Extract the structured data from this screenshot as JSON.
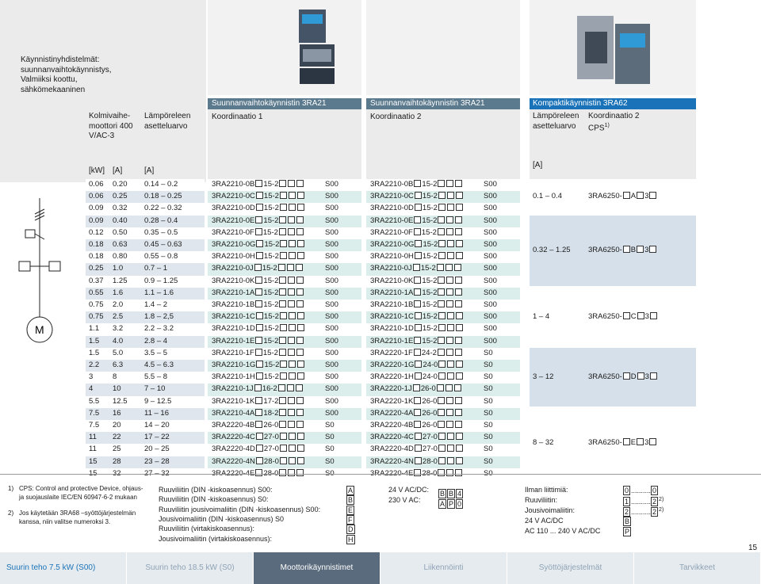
{
  "intro": {
    "title": "Käynnistinyhdistelmät: suunnanvaihtokäynnistys, Valmiiksi koottu, sähkömekaaninen"
  },
  "headers": {
    "motor": "Kolmivaihe-moottori 400 V/AC-3",
    "thermal": "Lämpöreleen asetteluarvo",
    "group1_title": "Suunnanvaihtokäynnistin 3RA21",
    "group1_coord": "Koordinaatio 1",
    "group2_title": "Suunnanvaihtokäynnistin 3RA21",
    "group2_coord": "Koordinaatio 2",
    "group3_title": "Kompaktikäynnistin  3RA62",
    "group3_thermal": "Lämpöreleen asetteluarvo",
    "group3_coord": "Koordinaatio 2",
    "group3_cps": "CPS",
    "group3_cps_sup": "1)",
    "unit_kw": "[kW]",
    "unit_a": "[A]",
    "unit_a2": "[A]",
    "unit_a3": "[A]"
  },
  "rows": [
    {
      "kw": "0.06",
      "a": "0.20",
      "range": "0.14 – 0.2",
      "c1a": "3RA2210-0B",
      "c1b": "15-2",
      "s1": "S00",
      "c2a": "3RA2210-0B",
      "c2b": "15-2",
      "s2": "S00"
    },
    {
      "kw": "0.06",
      "a": "0.25",
      "range": "0.18 – 0.25",
      "c1a": "3RA2210-0C",
      "c1b": "15-2",
      "s1": "S00",
      "c2a": "3RA2210-0C",
      "c2b": "15-2",
      "s2": "S00"
    },
    {
      "kw": "0.09",
      "a": "0.32",
      "range": "0.22 – 0.32",
      "c1a": "3RA2210-0D",
      "c1b": "15-2",
      "s1": "S00",
      "c2a": "3RA2210-0D",
      "c2b": "15-2",
      "s2": "S00"
    },
    {
      "kw": "0.09",
      "a": "0.40",
      "range": "0.28 – 0.4",
      "c1a": "3RA2210-0E",
      "c1b": "15-2",
      "s1": "S00",
      "c2a": "3RA2210-0E",
      "c2b": "15-2",
      "s2": "S00"
    },
    {
      "kw": "0.12",
      "a": "0.50",
      "range": "0.35 – 0.5",
      "c1a": "3RA2210-0F",
      "c1b": "15-2",
      "s1": "S00",
      "c2a": "3RA2210-0F",
      "c2b": "15-2",
      "s2": "S00"
    },
    {
      "kw": "0.18",
      "a": "0.63",
      "range": "0.45 – 0.63",
      "c1a": "3RA2210-0G",
      "c1b": "15-2",
      "s1": "S00",
      "c2a": "3RA2210-0G",
      "c2b": "15-2",
      "s2": "S00"
    },
    {
      "kw": "0.18",
      "a": "0.80",
      "range": "0.55 – 0.8",
      "c1a": "3RA2210-0H",
      "c1b": "15-2",
      "s1": "S00",
      "c2a": "3RA2210-0H",
      "c2b": "15-2",
      "s2": "S00"
    },
    {
      "kw": "0.25",
      "a": "1.0",
      "range": "0.7 – 1",
      "c1a": "3RA2210-0J",
      "c1b": "15-2",
      "s1": "S00",
      "c2a": "3RA2210-0J",
      "c2b": "15-2",
      "s2": "S00"
    },
    {
      "kw": "0.37",
      "a": "1.25",
      "range": "0.9 – 1.25",
      "c1a": "3RA2210-0K",
      "c1b": "15-2",
      "s1": "S00",
      "c2a": "3RA2210-0K",
      "c2b": "15-2",
      "s2": "S00"
    },
    {
      "kw": "0.55",
      "a": "1.6",
      "range": "1.1 – 1.6",
      "c1a": "3RA2210-1A",
      "c1b": "15-2",
      "s1": "S00",
      "c2a": "3RA2210-1A",
      "c2b": "15-2",
      "s2": "S00"
    },
    {
      "kw": "0.75",
      "a": "2.0",
      "range": "1.4 – 2",
      "c1a": "3RA2210-1B",
      "c1b": "15-2",
      "s1": "S00",
      "c2a": "3RA2210-1B",
      "c2b": "15-2",
      "s2": "S00"
    },
    {
      "kw": "0.75",
      "a": "2.5",
      "range": "1.8 – 2,5",
      "c1a": "3RA2210-1C",
      "c1b": "15-2",
      "s1": "S00",
      "c2a": "3RA2210-1C",
      "c2b": "15-2",
      "s2": "S00"
    },
    {
      "kw": "1.1",
      "a": "3.2",
      "range": "2.2 – 3.2",
      "c1a": "3RA2210-1D",
      "c1b": "15-2",
      "s1": "S00",
      "c2a": "3RA2210-1D",
      "c2b": "15-2",
      "s2": "S00"
    },
    {
      "kw": "1.5",
      "a": "4.0",
      "range": "2.8 – 4",
      "c1a": "3RA2210-1E",
      "c1b": "15-2",
      "s1": "S00",
      "c2a": "3RA2210-1E",
      "c2b": "15-2",
      "s2": "S00"
    },
    {
      "kw": "1.5",
      "a": "5.0",
      "range": "3.5 – 5",
      "c1a": "3RA2210-1F",
      "c1b": "15-2",
      "s1": "S00",
      "c2a": "3RA2220-1F",
      "c2b": "24-2",
      "s2": "S0"
    },
    {
      "kw": "2.2",
      "a": "6.3",
      "range": "4.5 – 6.3",
      "c1a": "3RA2210-1G",
      "c1b": "15-2",
      "s1": "S00",
      "c2a": "3RA2220-1G",
      "c2b": "24-0",
      "s2": "S0"
    },
    {
      "kw": "3",
      "a": "8",
      "range": "5.5 – 8",
      "c1a": "3RA2210-1H",
      "c1b": "15-2",
      "s1": "S00",
      "c2a": "3RA2220-1H",
      "c2b": "24-0",
      "s2": "S0"
    },
    {
      "kw": "4",
      "a": "10",
      "range": "7 – 10",
      "c1a": "3RA2210-1J",
      "c1b": "16-2",
      "s1": "S00",
      "c2a": "3RA2220-1J",
      "c2b": "26-0",
      "s2": "S0"
    },
    {
      "kw": "5.5",
      "a": "12.5",
      "range": "9 – 12.5",
      "c1a": "3RA2210-1K",
      "c1b": "17-2",
      "s1": "S00",
      "c2a": "3RA2220-1K",
      "c2b": "26-0",
      "s2": "S0"
    },
    {
      "kw": "7.5",
      "a": "16",
      "range": "11 – 16",
      "c1a": "3RA2210-4A",
      "c1b": "18-2",
      "s1": "S00",
      "c2a": "3RA2220-4A",
      "c2b": "26-0",
      "s2": "S0"
    },
    {
      "kw": "7.5",
      "a": "20",
      "range": "14 – 20",
      "c1a": "3RA2220-4B",
      "c1b": "26-0",
      "s1": "S0",
      "c2a": "3RA2220-4B",
      "c2b": "26-0",
      "s2": "S0"
    },
    {
      "kw": "11",
      "a": "22",
      "range": "17 – 22",
      "c1a": "3RA2220-4C",
      "c1b": "27-0",
      "s1": "S0",
      "c2a": "3RA2220-4C",
      "c2b": "27-0",
      "s2": "S0"
    },
    {
      "kw": "11",
      "a": "25",
      "range": "20 – 25",
      "c1a": "3RA2220-4D",
      "c1b": "27-0",
      "s1": "S0",
      "c2a": "3RA2220-4D",
      "c2b": "27-0",
      "s2": "S0"
    },
    {
      "kw": "15",
      "a": "28",
      "range": "23 – 28",
      "c1a": "3RA2220-4N",
      "c1b": "28-0",
      "s1": "S0",
      "c2a": "3RA2220-4N",
      "c2b": "28-0",
      "s2": "S0"
    },
    {
      "kw": "15",
      "a": "32",
      "range": "27 – 32",
      "c1a": "3RA2220-4E",
      "c1b": "28-0",
      "s1": "S0",
      "c2a": "3RA2220-4E",
      "c2b": "28-0",
      "s2": "S0"
    }
  ],
  "compact": [
    {
      "range": "0.1 – 0.4",
      "prefix": "3RA6250-",
      "mid": "A",
      "suffix": "3"
    },
    {
      "range": "0.32 – 1.25",
      "prefix": "3RA6250-",
      "mid": "B",
      "suffix": "3"
    },
    {
      "range": "1 – 4",
      "prefix": "3RA6250-",
      "mid": "C",
      "suffix": "3"
    },
    {
      "range": "3 – 12",
      "prefix": "3RA6250-",
      "mid": "D",
      "suffix": "3"
    },
    {
      "range": "8 – 32",
      "prefix": "3RA6250-",
      "mid": "E",
      "suffix": "3"
    }
  ],
  "footnotes": [
    {
      "num": "1)",
      "text": "CPS: Control and protective Device, ohjaus- ja suojauslaite IEC/EN 60947-6-2 mukaan"
    },
    {
      "num": "2)",
      "text": "Jos käytetään 3RA68 –syöttöjärjestelmän kanssa, niin valitse numeroksi 3."
    }
  ],
  "legend": [
    {
      "text": "Ruuviliitin (DIN -kiskoasennus) S00:",
      "code": "A"
    },
    {
      "text": "Ruuviliitin (DIN -kiskoasennus) S0:",
      "code": "B"
    },
    {
      "text": "Ruuviliitin jousivoimaliitin (DIN -kiskoasennus) S00:",
      "code": "E"
    },
    {
      "text": "Jousivoimaliitin (DIN -kiskoasennus) S0",
      "code": "F"
    },
    {
      "text": "Ruuviliitin (virtakiskoasennus):",
      "code": "D"
    },
    {
      "text": "Jousivoimaliitin (virtakiskoasennus):",
      "code": "H"
    }
  ],
  "voltage": [
    {
      "label": "24 V AC/DC:",
      "c1": "B",
      "c2": "B",
      "c3": "4"
    },
    {
      "label": "230 V AC:",
      "c1": "A",
      "c2": "P",
      "c3": "0"
    }
  ],
  "options": [
    {
      "label": "Ilman liittimiä:",
      "c1": "0",
      "dots": "..........",
      "c2": "0",
      "sup": ""
    },
    {
      "label": "Ruuviliitin:",
      "c1": "1",
      "dots": "..........",
      "c2": "2",
      "sup": "2)"
    },
    {
      "label": "Jousivoimaliitin:",
      "c1": "2",
      "dots": "..........",
      "c2": "2",
      "sup": "2)"
    },
    {
      "label": "24 V AC/DC",
      "c1": "B",
      "dots": "",
      "c2": "",
      "sup": ""
    },
    {
      "label": "AC 110 ... 240 V AC/DC",
      "c1": "P",
      "dots": "",
      "c2": "",
      "sup": ""
    }
  ],
  "page_number": "15",
  "nav": [
    "Suurin teho 7.5 kW (S00)",
    "Suurin teho 18.5 kW (S0)",
    "Moottorikäynnistimet",
    "Liikennöinti",
    "Syöttöjärjestelmät",
    "Tarvikkeet"
  ],
  "colors": {
    "accent": "#1a73b8",
    "pane": "#ebebeb",
    "row_light": "#dceeeb",
    "row_blue": "#d6e0ea",
    "nav_active": "#5a6b7d"
  }
}
